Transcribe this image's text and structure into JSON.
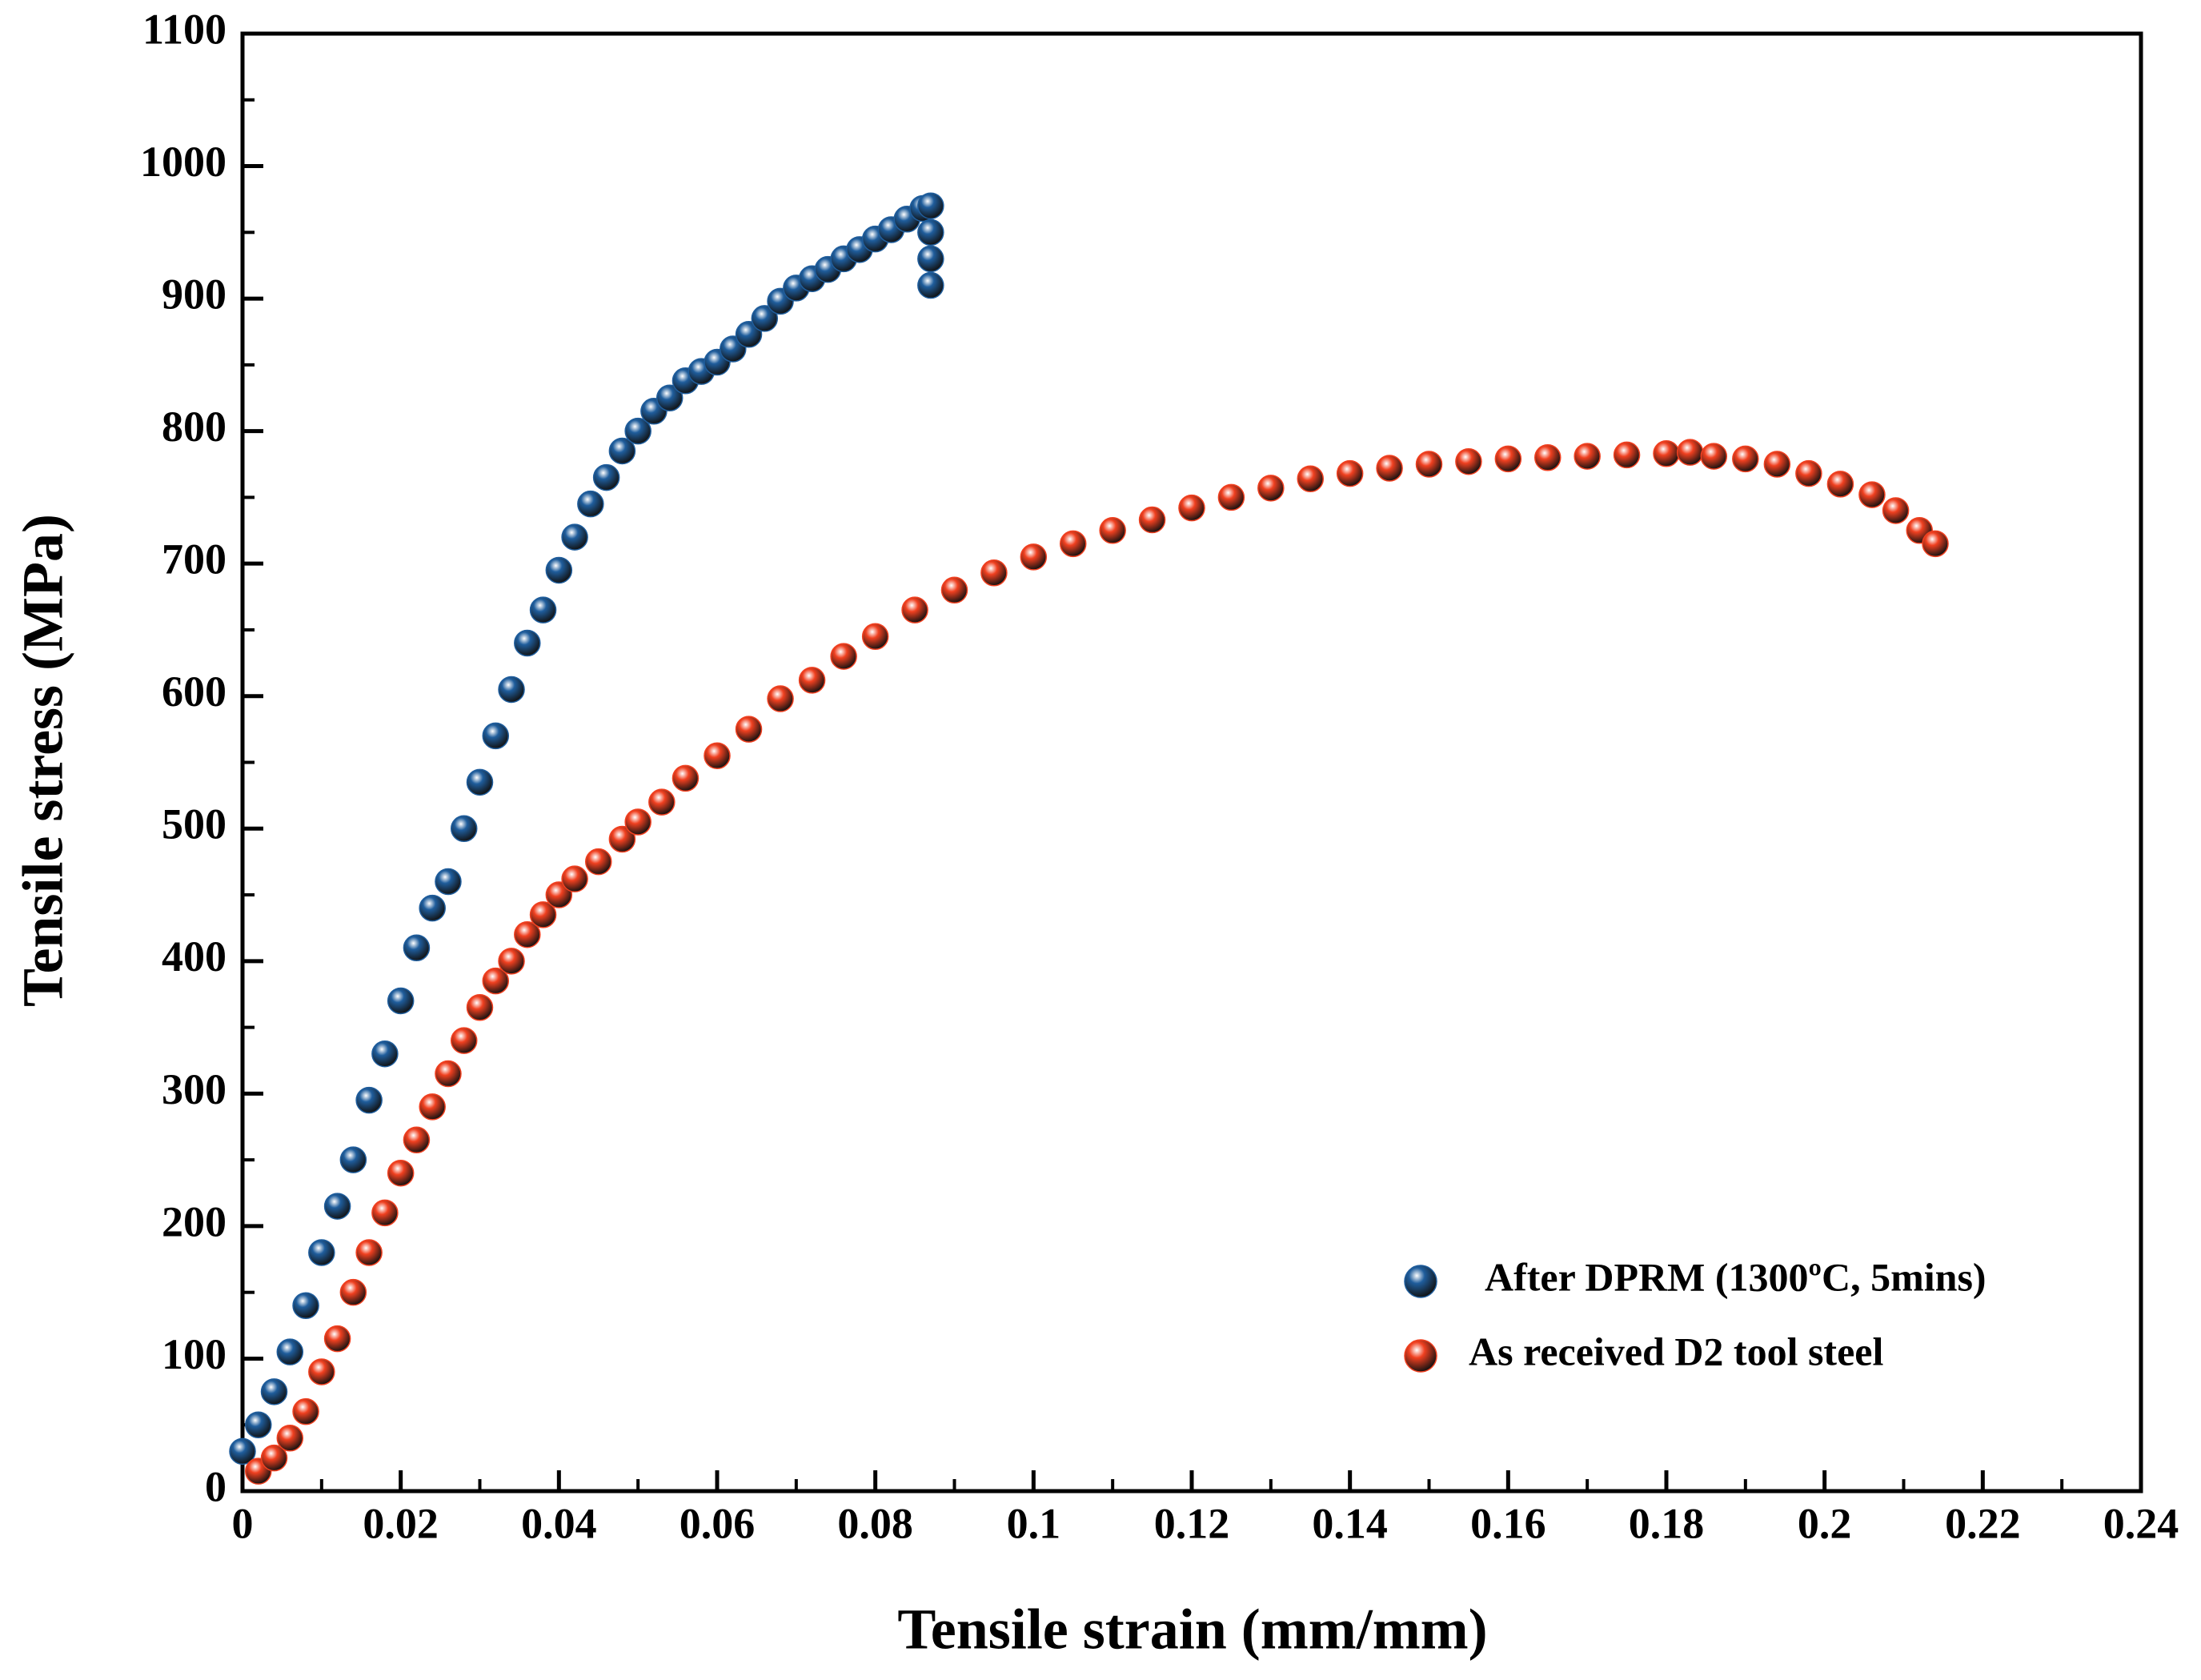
{
  "chart_data": {
    "type": "scatter",
    "xlabel": "Tensile strain (mm/mm)",
    "ylabel": "Tensile stress (MPa)",
    "xlim": [
      0,
      0.24
    ],
    "ylim": [
      0,
      1100
    ],
    "xticks": [
      0,
      0.02,
      0.04,
      0.06,
      0.08,
      0.1,
      0.12,
      0.14,
      0.16,
      0.18,
      0.2,
      0.22,
      0.24
    ],
    "yticks": [
      0,
      100,
      200,
      300,
      400,
      500,
      600,
      700,
      800,
      900,
      1000,
      1100
    ],
    "legend": "lower right",
    "series": [
      {
        "name": "After DPRM (1300ºC, 5mins)",
        "color": "#1f5d9c",
        "x": [
          0,
          0.002,
          0.004,
          0.006,
          0.008,
          0.01,
          0.012,
          0.014,
          0.016,
          0.018,
          0.02,
          0.022,
          0.024,
          0.026,
          0.028,
          0.03,
          0.032,
          0.034,
          0.036,
          0.038,
          0.04,
          0.042,
          0.044,
          0.046,
          0.048,
          0.05,
          0.052,
          0.054,
          0.056,
          0.058,
          0.06,
          0.062,
          0.064,
          0.066,
          0.068,
          0.07,
          0.072,
          0.074,
          0.076,
          0.078,
          0.08,
          0.082,
          0.084,
          0.086,
          0.087,
          0.087,
          0.087,
          0.087
        ],
        "values": [
          30,
          50,
          75,
          105,
          140,
          180,
          215,
          250,
          295,
          330,
          370,
          410,
          440,
          460,
          500,
          535,
          570,
          605,
          640,
          665,
          695,
          720,
          745,
          765,
          785,
          800,
          815,
          825,
          838,
          845,
          852,
          862,
          873,
          885,
          898,
          908,
          915,
          922,
          930,
          937,
          945,
          952,
          960,
          968,
          970,
          950,
          930,
          910
        ]
      },
      {
        "name": "As received D2 tool steel",
        "color": "#f04020",
        "x": [
          0.002,
          0.004,
          0.006,
          0.008,
          0.01,
          0.012,
          0.014,
          0.016,
          0.018,
          0.02,
          0.022,
          0.024,
          0.026,
          0.028,
          0.03,
          0.032,
          0.034,
          0.036,
          0.038,
          0.04,
          0.042,
          0.045,
          0.048,
          0.05,
          0.053,
          0.056,
          0.06,
          0.064,
          0.068,
          0.072,
          0.076,
          0.08,
          0.085,
          0.09,
          0.095,
          0.1,
          0.105,
          0.11,
          0.115,
          0.12,
          0.125,
          0.13,
          0.135,
          0.14,
          0.145,
          0.15,
          0.155,
          0.16,
          0.165,
          0.17,
          0.175,
          0.18,
          0.183,
          0.186,
          0.19,
          0.194,
          0.198,
          0.202,
          0.206,
          0.209,
          0.212,
          0.214
        ],
        "values": [
          15,
          25,
          40,
          60,
          90,
          115,
          150,
          180,
          210,
          240,
          265,
          290,
          315,
          340,
          365,
          385,
          400,
          420,
          435,
          450,
          462,
          475,
          492,
          505,
          520,
          538,
          555,
          575,
          598,
          612,
          630,
          645,
          665,
          680,
          693,
          705,
          715,
          725,
          733,
          742,
          750,
          757,
          764,
          768,
          772,
          775,
          777,
          779,
          780,
          781,
          782,
          783,
          784,
          781,
          779,
          775,
          768,
          760,
          752,
          740,
          725,
          715
        ]
      }
    ]
  }
}
